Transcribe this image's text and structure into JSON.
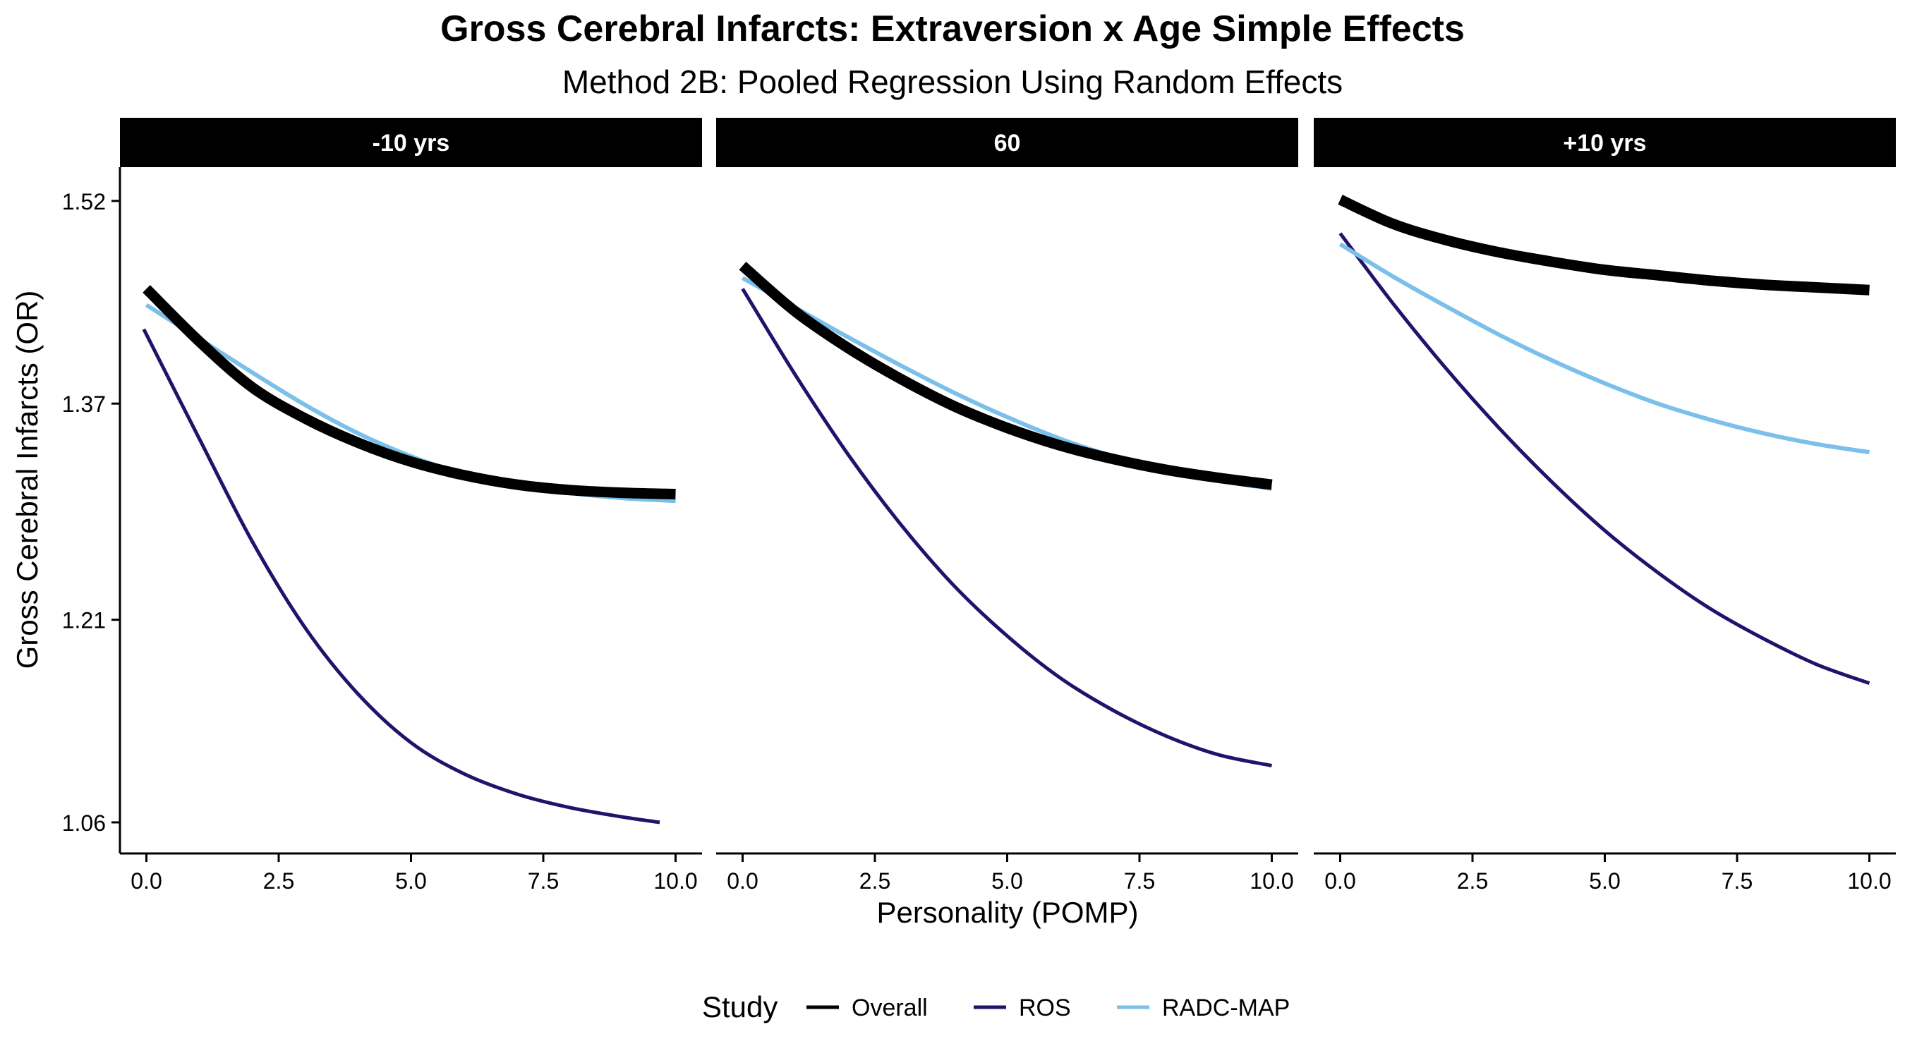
{
  "chart_data": {
    "type": "line",
    "title": "Gross Cerebral Infarcts: Extraversion x Age Simple Effects",
    "subtitle": "Method 2B: Pooled Regression Using Random Effects",
    "xlabel": "Personality (POMP)",
    "ylabel": "Gross Cerebral Infarcts (OR)",
    "ylim": [
      1.037,
      1.545
    ],
    "xlim": [
      -0.5,
      10.5
    ],
    "y_ticks": [
      {
        "value": 1.06,
        "label": "1.06"
      },
      {
        "value": 1.21,
        "label": "1.21"
      },
      {
        "value": 1.37,
        "label": "1.37"
      },
      {
        "value": 1.52,
        "label": "1.52"
      }
    ],
    "x_ticks": [
      {
        "value": 0,
        "label": "0.0"
      },
      {
        "value": 2.5,
        "label": "2.5"
      },
      {
        "value": 5,
        "label": "5.0"
      },
      {
        "value": 7.5,
        "label": "7.5"
      },
      {
        "value": 10,
        "label": "10.0"
      }
    ],
    "grid": false,
    "legend": {
      "title": "Study",
      "position": "bottom",
      "entries": [
        {
          "name": "Overall",
          "color": "#000000"
        },
        {
          "name": "ROS",
          "color": "#23126b"
        },
        {
          "name": "RADC-MAP",
          "color": "#7bc0ea"
        }
      ]
    },
    "colors": {
      "Overall": "#000000",
      "ROS": "#23126b",
      "RADC-MAP": "#7bc0ea",
      "strip_background": "#000000",
      "strip_text": "#ffffff"
    },
    "panels": [
      {
        "label": "-10 yrs",
        "series": [
          {
            "name": "Overall",
            "x": [
              0,
              1,
              2,
              3,
              4,
              5,
              6,
              7,
              8,
              9,
              10
            ],
            "y": [
              1.455,
              1.416,
              1.382,
              1.359,
              1.341,
              1.327,
              1.317,
              1.31,
              1.306,
              1.304,
              1.303
            ]
          },
          {
            "name": "ROS",
            "x": [
              -0.05,
              1,
              2,
              3,
              4,
              5,
              6,
              7,
              8,
              9,
              9.7
            ],
            "y": [
              1.425,
              1.344,
              1.268,
              1.204,
              1.155,
              1.119,
              1.096,
              1.081,
              1.071,
              1.064,
              1.06
            ]
          },
          {
            "name": "RADC-MAP",
            "x": [
              0,
              1,
              2,
              3,
              4,
              5,
              6,
              7,
              8,
              9,
              10
            ],
            "y": [
              1.443,
              1.418,
              1.393,
              1.369,
              1.348,
              1.331,
              1.318,
              1.31,
              1.304,
              1.3,
              1.298
            ]
          }
        ]
      },
      {
        "label": "60",
        "series": [
          {
            "name": "Overall",
            "x": [
              0,
              1,
              2,
              3,
              4,
              5,
              6,
              7,
              8,
              9,
              10
            ],
            "y": [
              1.472,
              1.438,
              1.411,
              1.388,
              1.368,
              1.352,
              1.339,
              1.329,
              1.321,
              1.315,
              1.31
            ]
          },
          {
            "name": "ROS",
            "x": [
              0,
              1,
              2,
              3,
              4,
              5,
              6,
              7,
              8,
              9,
              10
            ],
            "y": [
              1.455,
              1.391,
              1.332,
              1.28,
              1.235,
              1.198,
              1.167,
              1.143,
              1.124,
              1.11,
              1.102
            ]
          },
          {
            "name": "RADC-MAP",
            "x": [
              0,
              1,
              2,
              3,
              4,
              5,
              6,
              7,
              8,
              9,
              10
            ],
            "y": [
              1.463,
              1.441,
              1.419,
              1.398,
              1.378,
              1.36,
              1.344,
              1.331,
              1.321,
              1.313,
              1.307
            ]
          }
        ]
      },
      {
        "label": "+10 yrs",
        "series": [
          {
            "name": "Overall",
            "x": [
              0,
              1,
              2,
              3,
              4,
              5,
              6,
              7,
              8,
              9,
              10
            ],
            "y": [
              1.521,
              1.503,
              1.491,
              1.482,
              1.475,
              1.469,
              1.465,
              1.461,
              1.458,
              1.456,
              1.454
            ]
          },
          {
            "name": "ROS",
            "x": [
              0,
              1,
              2,
              3,
              4,
              5,
              6,
              7,
              8,
              9,
              10
            ],
            "y": [
              1.496,
              1.444,
              1.396,
              1.352,
              1.312,
              1.276,
              1.245,
              1.218,
              1.196,
              1.177,
              1.163
            ]
          },
          {
            "name": "RADC-MAP",
            "x": [
              0,
              1,
              2,
              3,
              4,
              5,
              6,
              7,
              8,
              9,
              10
            ],
            "y": [
              1.488,
              1.464,
              1.442,
              1.421,
              1.402,
              1.385,
              1.37,
              1.358,
              1.348,
              1.34,
              1.334
            ]
          }
        ]
      }
    ]
  }
}
